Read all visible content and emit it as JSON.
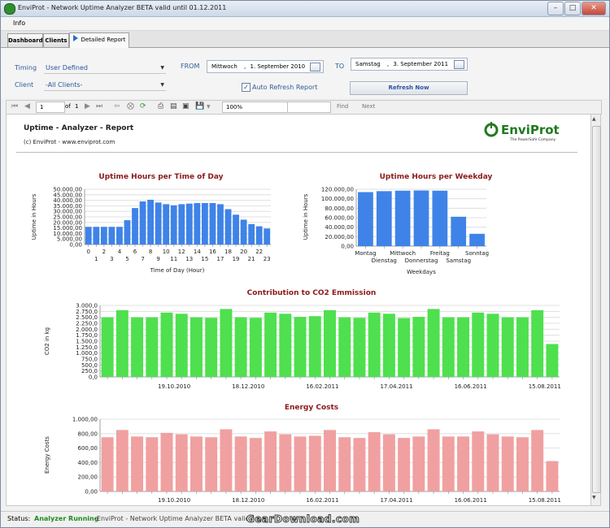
{
  "window": {
    "title": "EnviProt - Network Uptime Analyzer BETA valid until 01.12.2011",
    "minimize_label": "–",
    "maximize_label": "□",
    "close_label": "✕"
  },
  "menu": {
    "info_label": "Info"
  },
  "tabs": [
    {
      "label": "Dashboard"
    },
    {
      "label": "Clients"
    },
    {
      "label": "Detailed Report"
    }
  ],
  "filters": {
    "timing_label": "Timing",
    "timing_value": "User Defined",
    "client_label": "Client",
    "client_value": "-All Clients-",
    "from_label": "FROM",
    "from_day": "Mittwoch",
    "from_sep": ",",
    "from_date": "1. September 2010",
    "to_label": "TO",
    "to_day": "Samstag",
    "to_sep": ",",
    "to_date": "3. September 2011",
    "auto_refresh_label": "Auto Refresh Report",
    "auto_refresh_checked": true,
    "refresh_button": "Refresh Now"
  },
  "toolbar": {
    "page_current": "1",
    "page_of": "of",
    "page_total": "1",
    "zoom": "100%",
    "find_label": "Find",
    "next_label": "Next",
    "find_value": ""
  },
  "report": {
    "title": "Uptime - Analyzer - Report",
    "subtitle": "(c) EnviProt - www.enviprot.com",
    "logo_text": "EnviProt",
    "logo_tagline": "The PowerSafe Company"
  },
  "status": {
    "label": "Status:",
    "state": "Analyzer Running",
    "message": "-EnviProt - Network Uptime Analyzer BETA valid"
  },
  "watermark": "GearDownload.com",
  "colors": {
    "blue_bar": "#3f83e8",
    "green_bar": "#4ee04e",
    "red_bar": "#f0a0a0",
    "chart_title": "#8b1a1a",
    "status_green": "#1e8a1e"
  },
  "chart_data": [
    {
      "type": "bar",
      "title": "Uptime Hours per Time of Day",
      "xlabel": "Time of Day (Hour)",
      "ylabel": "Uptime in Hours",
      "ylim": [
        0,
        50000
      ],
      "yticks": [
        "0,00",
        "5.000,00",
        "10.000,00",
        "15.000,00",
        "20.000,00",
        "25.000,00",
        "30.000,00",
        "35.000,00",
        "40.000,00",
        "45.000,00",
        "50.000,00"
      ],
      "categories": [
        "0",
        "1",
        "2",
        "3",
        "4",
        "5",
        "6",
        "7",
        "8",
        "9",
        "10",
        "11",
        "12",
        "13",
        "14",
        "15",
        "16",
        "17",
        "18",
        "19",
        "20",
        "21",
        "22",
        "23"
      ],
      "values": [
        16000,
        16000,
        16000,
        16000,
        16000,
        22000,
        33000,
        39000,
        40500,
        38000,
        36500,
        35500,
        36500,
        37000,
        37500,
        37500,
        37500,
        36500,
        32000,
        27000,
        22500,
        18500,
        16500,
        14500
      ],
      "color": "#3f83e8"
    },
    {
      "type": "bar",
      "title": "Uptime Hours per Weekday",
      "xlabel": "Weekdays",
      "ylabel": "Uptime in Hours",
      "ylim": [
        0,
        120000
      ],
      "yticks": [
        "0,00",
        "20.000,00",
        "40.000,00",
        "60.000,00",
        "80.000,00",
        "100.000,00",
        "120.000,00"
      ],
      "categories": [
        "Montag",
        "Dienstag",
        "Mittwoch",
        "Donnerstag",
        "Freitag",
        "Samstag",
        "Sonntag"
      ],
      "values": [
        114000,
        116000,
        117000,
        117500,
        117000,
        62000,
        26000
      ],
      "color": "#3f83e8"
    },
    {
      "type": "bar",
      "title": "Contribution to CO2 Emmission",
      "ylabel": "CO2 in kg",
      "ylim": [
        0,
        3000
      ],
      "yticks": [
        "0,0",
        "250,0",
        "500,0",
        "750,0",
        "1.000,0",
        "1.250,0",
        "1.500,0",
        "1.750,0",
        "2.000,0",
        "2.250,0",
        "2.500,0",
        "2.750,0",
        "3.000,0"
      ],
      "x_tick_labels": [
        {
          "label": "19.10.2010",
          "after_bar": 4
        },
        {
          "label": "18.12.2010",
          "after_bar": 9
        },
        {
          "label": "16.02.2011",
          "after_bar": 14
        },
        {
          "label": "17.04.2011",
          "after_bar": 19
        },
        {
          "label": "16.06.2011",
          "after_bar": 24
        },
        {
          "label": "15.08.2011",
          "after_bar": 29
        }
      ],
      "values": [
        2500,
        2800,
        2500,
        2500,
        2700,
        2650,
        2500,
        2480,
        2850,
        2500,
        2480,
        2700,
        2650,
        2520,
        2550,
        2800,
        2500,
        2480,
        2700,
        2650,
        2470,
        2520,
        2850,
        2500,
        2500,
        2700,
        2650,
        2500,
        2500,
        2800,
        1380
      ],
      "color": "#4ee04e"
    },
    {
      "type": "bar",
      "title": "Energy Costs",
      "ylabel": "Energy Costs",
      "ylim": [
        0,
        1000
      ],
      "yticks": [
        "0,00",
        "200,00",
        "400,00",
        "600,00",
        "800,00",
        "1.000,00"
      ],
      "x_tick_labels": [
        {
          "label": "19.10.2010",
          "after_bar": 4
        },
        {
          "label": "18.12.2010",
          "after_bar": 9
        },
        {
          "label": "16.02.2011",
          "after_bar": 14
        },
        {
          "label": "17.04.2011",
          "after_bar": 19
        },
        {
          "label": "16.06.2011",
          "after_bar": 24
        },
        {
          "label": "15.08.2011",
          "after_bar": 29
        }
      ],
      "values": [
        750,
        850,
        760,
        750,
        810,
        790,
        760,
        750,
        860,
        760,
        740,
        830,
        790,
        760,
        770,
        850,
        750,
        740,
        820,
        790,
        740,
        760,
        860,
        760,
        760,
        830,
        790,
        760,
        750,
        850,
        420
      ],
      "color": "#f0a0a0"
    }
  ]
}
